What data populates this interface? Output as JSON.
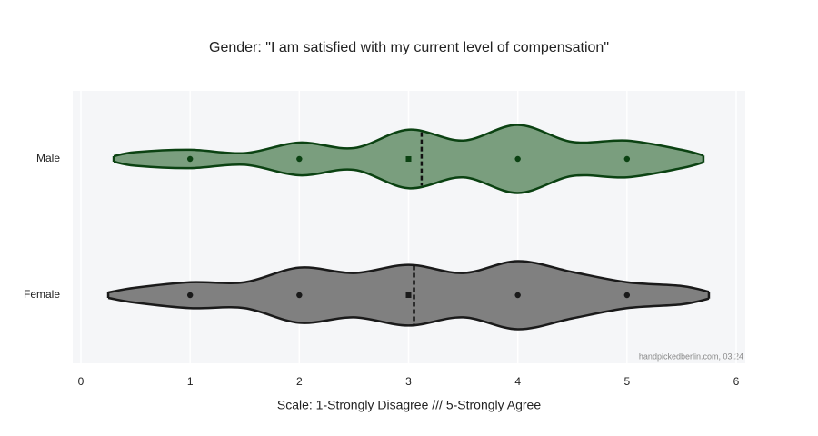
{
  "chart_data": {
    "type": "violin",
    "title": "Gender: \"I am satisfied with my current level of compensation\"",
    "x_label": "Scale: 1-Strongly Disagree /// 5-Strongly Agree",
    "watermark": "handpickedberlin.com, 03.24",
    "xlim": [
      0,
      6
    ],
    "xticks": [
      0,
      1,
      2,
      3,
      4,
      5,
      6
    ],
    "grid": true,
    "categories": [
      "Male",
      "Female"
    ],
    "series": [
      {
        "name": "Male",
        "color": "#7a9e7e",
        "line_color": "#0b4212",
        "points": [
          1,
          2,
          3,
          4,
          5
        ],
        "mean": 3.12,
        "density_x": [
          0.3,
          0.5,
          1,
          1.5,
          2,
          2.5,
          3,
          3.5,
          4,
          4.5,
          5,
          5.5,
          5.7
        ],
        "density": [
          0.08,
          0.2,
          0.27,
          0.17,
          0.48,
          0.32,
          0.86,
          0.54,
          1,
          0.5,
          0.54,
          0.27,
          0.1
        ]
      },
      {
        "name": "Female",
        "color": "#808080",
        "line_color": "#1a1a1a",
        "points": [
          1,
          2,
          3,
          4,
          5
        ],
        "mean": 3.05,
        "density_x": [
          0.25,
          0.5,
          1,
          1.5,
          2,
          2.5,
          3,
          3.5,
          4,
          4.5,
          5,
          5.5,
          5.75
        ],
        "density": [
          0.08,
          0.22,
          0.38,
          0.38,
          0.81,
          0.65,
          0.89,
          0.65,
          1,
          0.68,
          0.38,
          0.27,
          0.1
        ]
      }
    ]
  }
}
